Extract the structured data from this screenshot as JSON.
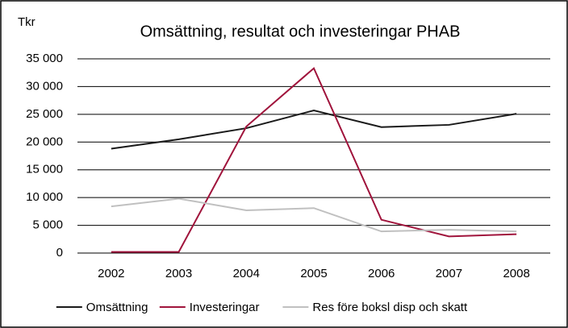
{
  "chart_data": {
    "type": "line",
    "title": "Omsättning, resultat och investeringar PHAB",
    "y_label": "Tkr",
    "categories": [
      "2002",
      "2003",
      "2004",
      "2005",
      "2006",
      "2007",
      "2008"
    ],
    "series": [
      {
        "name": "Omsättning",
        "color": "#1a1a1a",
        "values": [
          18800,
          20500,
          22500,
          25700,
          22700,
          23100,
          25100
        ]
      },
      {
        "name": "Investeringar",
        "color": "#a0143c",
        "values": [
          200,
          200,
          22800,
          33300,
          6000,
          3000,
          3400
        ]
      },
      {
        "name": "Res före boksl disp och skatt",
        "color": "#c0c0c0",
        "values": [
          8400,
          9800,
          7700,
          8100,
          3900,
          4200,
          3900
        ]
      }
    ],
    "ylim": [
      0,
      35000
    ],
    "yticks": [
      0,
      {
        "value": 5000,
        "label": "5 000"
      },
      {
        "value": 10000,
        "label": "10 000"
      },
      {
        "value": 15000,
        "label": "15 000"
      },
      {
        "value": 20000,
        "label": "20 000"
      },
      {
        "value": 25000,
        "label": "25 000"
      },
      {
        "value": 30000,
        "label": "30 000"
      },
      {
        "value": 35000,
        "label": "35 000"
      }
    ],
    "grid": true,
    "legend": "bottom"
  }
}
